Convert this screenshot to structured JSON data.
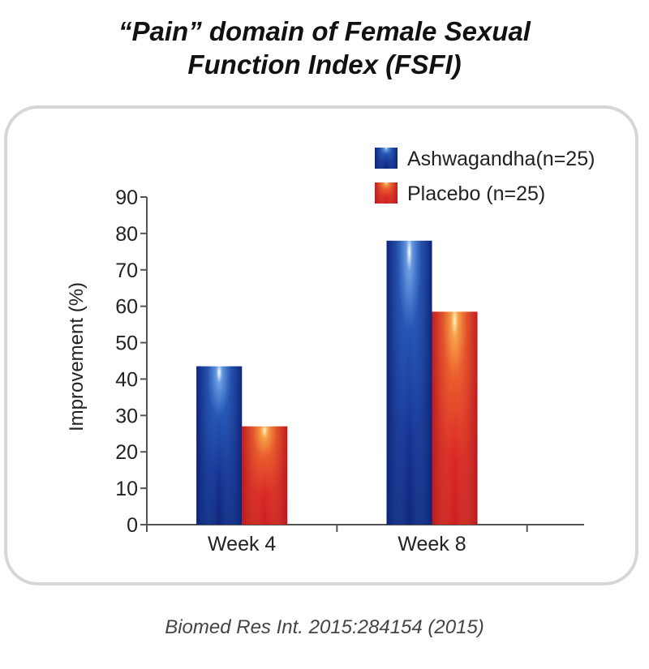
{
  "chart_data": {
    "type": "bar",
    "title_lines": [
      "“Pain” domain of Female Sexual",
      "Function Index (FSFI)"
    ],
    "categories": [
      "Week 4",
      "Week 8"
    ],
    "series": [
      {
        "name": "Ashwagandha(n=25)",
        "values": [
          43.5,
          78
        ],
        "color": "#1a3a9c"
      },
      {
        "name": "Placebo (n=25)",
        "values": [
          27,
          58.5
        ],
        "color": "#e0262a"
      }
    ],
    "ylabel": "Improvement (%)",
    "ylim": [
      0,
      90
    ],
    "yticks": [
      "0",
      "10",
      "20",
      "30",
      "40",
      "50",
      "60",
      "70",
      "80",
      "90"
    ],
    "legend_position": "top-right",
    "grid": false
  },
  "citation": "Biomed Res Int. 2015:284154 (2015)"
}
